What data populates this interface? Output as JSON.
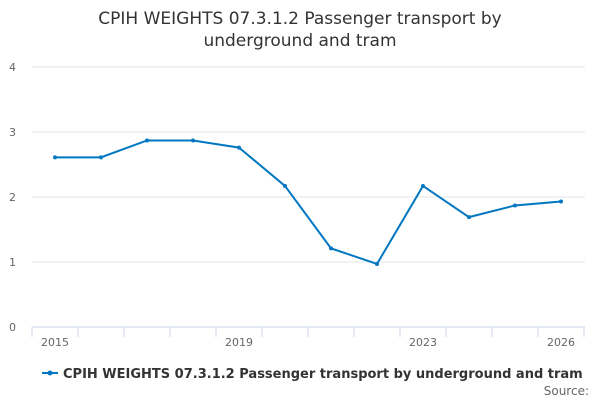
{
  "chart_data": {
    "type": "line",
    "title_lines": [
      "CPIH WEIGHTS 07.3.1.2 Passenger transport by",
      "underground and tram"
    ],
    "x": [
      2015,
      2016,
      2017,
      2018,
      2019,
      2020,
      2021,
      2022,
      2023,
      2024,
      2025,
      2026
    ],
    "x_tick_labels": [
      "2015",
      "2019",
      "2023",
      "2026"
    ],
    "series": [
      {
        "name": "CPIH WEIGHTS 07.3.1.2 Passenger transport by underground and tram",
        "color": "#0077c0",
        "values": [
          2.61,
          2.61,
          2.87,
          2.87,
          2.76,
          2.17,
          1.21,
          0.97,
          2.17,
          1.69,
          1.87,
          1.93
        ]
      }
    ],
    "y_ticks": [
      "0",
      "1",
      "2",
      "3",
      "4"
    ],
    "ylim": [
      0,
      4
    ],
    "xlabel": "",
    "ylabel": "",
    "grid": true,
    "legend_position": "bottom",
    "credit": "Source:"
  }
}
